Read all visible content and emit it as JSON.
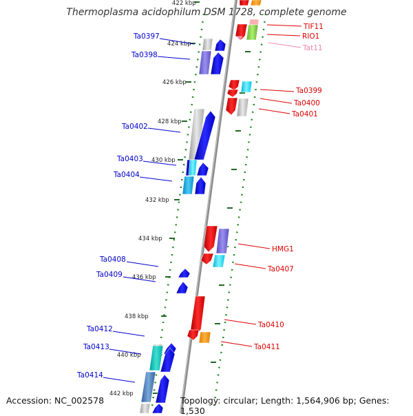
{
  "title": "Thermoplasma acidophilum DSM 1728, complete genome",
  "footer": {
    "accession": "Accession: NC_002578",
    "topology": "Topology: circular; Length: 1,564,906 bp; Genes: 1,530"
  },
  "colors": {
    "forward": "#0000ee",
    "reverse": "#ee0000",
    "backbone": "#8c8c8c",
    "tick": "#228822",
    "pink": "#ee88aa"
  },
  "kbp_labels": [
    {
      "name": "kbp-label-422",
      "text": "422 kbp"
    },
    {
      "name": "kbp-label-424",
      "text": "424 kbp"
    },
    {
      "name": "kbp-label-426",
      "text": "426 kbp"
    },
    {
      "name": "kbp-label-428",
      "text": "428 kbp"
    },
    {
      "name": "kbp-label-430",
      "text": "430 kbp"
    },
    {
      "name": "kbp-label-432",
      "text": "432 kbp"
    },
    {
      "name": "kbp-label-434",
      "text": "434 kbp"
    },
    {
      "name": "kbp-label-436",
      "text": "436 kbp"
    },
    {
      "name": "kbp-label-438",
      "text": "438 kbp"
    },
    {
      "name": "kbp-label-440",
      "text": "440 kbp"
    },
    {
      "name": "kbp-label-442",
      "text": "442 kbp"
    }
  ],
  "left_genes": [
    {
      "name": "gene-label-ta0397",
      "text": "Ta0397"
    },
    {
      "name": "gene-label-ta0398",
      "text": "Ta0398"
    },
    {
      "name": "gene-label-ta0402",
      "text": "Ta0402"
    },
    {
      "name": "gene-label-ta0403",
      "text": "Ta0403"
    },
    {
      "name": "gene-label-ta0404",
      "text": "Ta0404"
    },
    {
      "name": "gene-label-ta0408",
      "text": "Ta0408"
    },
    {
      "name": "gene-label-ta0409",
      "text": "Ta0409"
    },
    {
      "name": "gene-label-ta0412",
      "text": "Ta0412"
    },
    {
      "name": "gene-label-ta0413",
      "text": "Ta0413"
    },
    {
      "name": "gene-label-ta0414",
      "text": "Ta0414"
    }
  ],
  "right_genes": [
    {
      "name": "gene-label-tif11",
      "text": "TIF11"
    },
    {
      "name": "gene-label-rio1",
      "text": "RIO1"
    },
    {
      "name": "gene-label-tat11",
      "text": "Tat11"
    },
    {
      "name": "gene-label-ta0399",
      "text": "Ta0399"
    },
    {
      "name": "gene-label-ta0400",
      "text": "Ta0400"
    },
    {
      "name": "gene-label-ta0401",
      "text": "Ta0401"
    },
    {
      "name": "gene-label-hmg1",
      "text": "HMG1"
    },
    {
      "name": "gene-label-ta0407",
      "text": "Ta0407"
    },
    {
      "name": "gene-label-ta0410",
      "text": "Ta0410"
    },
    {
      "name": "gene-label-ta0411",
      "text": "Ta0411"
    }
  ]
}
